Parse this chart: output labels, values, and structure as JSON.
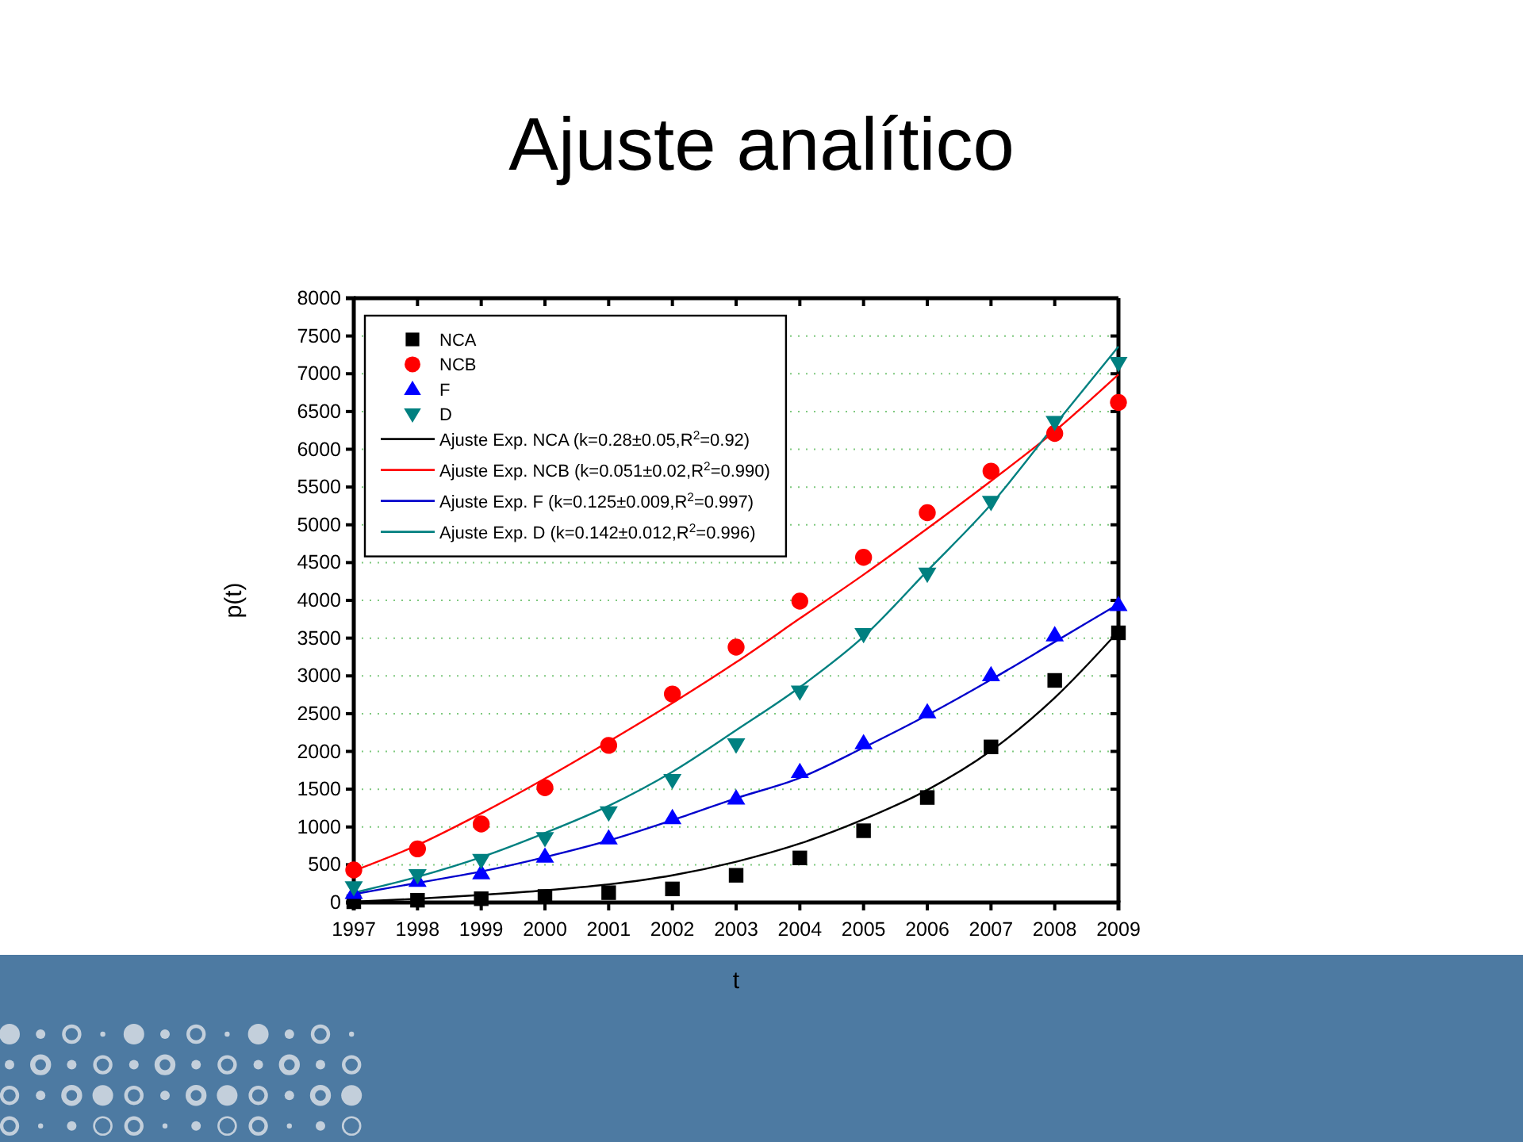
{
  "chart_data": {
    "type": "scatter",
    "title": "Ajuste analítico",
    "xlabel": "t",
    "ylabel": "p(t)",
    "x": [
      1997,
      1998,
      1999,
      2000,
      2001,
      2002,
      2003,
      2004,
      2005,
      2006,
      2007,
      2008,
      2009
    ],
    "xlim": [
      1997,
      2009
    ],
    "xticks": [
      1997,
      1998,
      1999,
      2000,
      2001,
      2002,
      2003,
      2004,
      2005,
      2006,
      2007,
      2008,
      2009
    ],
    "ylim": [
      0,
      8000
    ],
    "yticks": [
      0,
      500,
      1000,
      1500,
      2000,
      2500,
      3000,
      3500,
      4000,
      4500,
      5000,
      5500,
      6000,
      6500,
      7000,
      7500,
      8000
    ],
    "grid": "y",
    "legend": "top left",
    "series": [
      {
        "name": "NCA",
        "marker": "square",
        "color": "#000000",
        "values": [
          10,
          30,
          50,
          80,
          130,
          180,
          360,
          590,
          950,
          1390,
          2060,
          2940,
          3570
        ]
      },
      {
        "name": "NCB",
        "marker": "circle",
        "color": "#ff0000",
        "values": [
          430,
          710,
          1040,
          1520,
          2080,
          2760,
          3380,
          3990,
          4570,
          5160,
          5710,
          6210,
          6620
        ]
      },
      {
        "name": "F",
        "marker": "triangle",
        "color": "#0000ff",
        "values": [
          130,
          290,
          390,
          610,
          850,
          1120,
          1380,
          1730,
          2110,
          2520,
          3010,
          3540,
          3940
        ]
      },
      {
        "name": "D",
        "marker": "triangle-down",
        "color": "#008080",
        "values": [
          200,
          360,
          560,
          850,
          1190,
          1620,
          2090,
          2790,
          3550,
          4350,
          5300,
          6360,
          7140
        ]
      },
      {
        "name": "Ajuste Exp. NCA (k=0.28±0.05,R$^{2}$=0.92)",
        "type": "line",
        "marker": "none",
        "color": "#000000",
        "values": [
          10,
          50,
          100,
          160,
          240,
          360,
          540,
          780,
          1100,
          1490,
          2010,
          2710,
          3590
        ]
      },
      {
        "name": "Ajuste Exp. NCB (k=0.051±0.02,R$^{2}$=0.990)",
        "type": "line",
        "marker": "none",
        "color": "#ff0000",
        "values": [
          420,
          760,
          1180,
          1640,
          2130,
          2640,
          3180,
          3760,
          4340,
          4950,
          5580,
          6240,
          6990
        ]
      },
      {
        "name": "Ajuste Exp. F (k=0.125±0.009,R$^{2}$=0.997)",
        "type": "line",
        "marker": "none",
        "color": "#0000cc",
        "values": [
          110,
          260,
          410,
          600,
          820,
          1090,
          1380,
          1650,
          2050,
          2480,
          2950,
          3450,
          3950
        ]
      },
      {
        "name": "Ajuste Exp. D (k=0.142±0.012,R$^{2}$=0.996)",
        "type": "line",
        "marker": "none",
        "color": "#008080",
        "values": [
          130,
          340,
          600,
          920,
          1280,
          1730,
          2280,
          2850,
          3520,
          4390,
          5270,
          6320,
          7360
        ]
      }
    ]
  }
}
